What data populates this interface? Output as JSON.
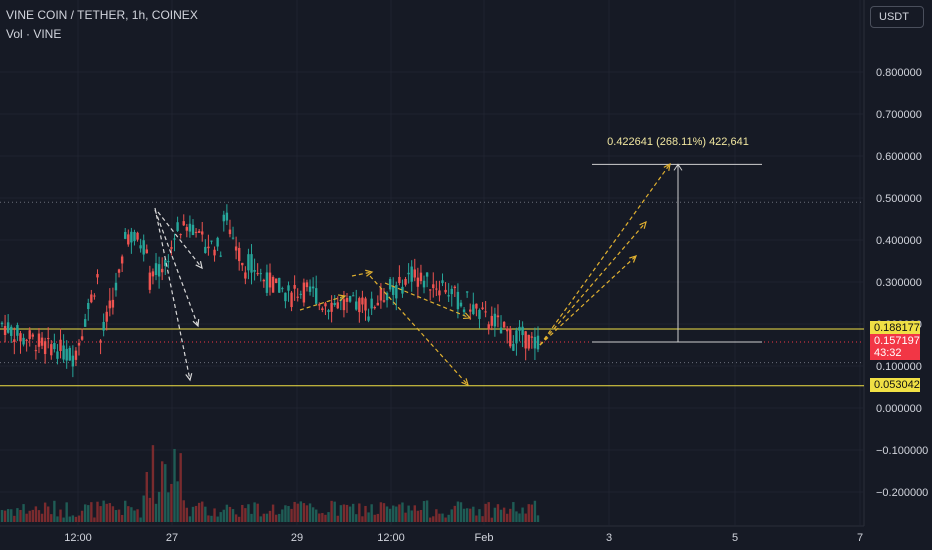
{
  "header": {
    "title": "VINE COIN / TETHER, 1h, COINEX",
    "volume_label": "Vol · VINE"
  },
  "currency_button": "USDT",
  "price_tags": {
    "line_upper": "0.188177",
    "current_price": "0.157197",
    "countdown": "43:32",
    "line_lower": "0.053042"
  },
  "measure_label": "0.422641 (268.11%) 422,641",
  "colors": {
    "background": "#161a25",
    "grid": "#1f2330",
    "up": "#26a69a",
    "down": "#ef5350",
    "yellow_line": "#f0e045",
    "current_tag": "#f23645",
    "arrow_white": "#d8d8d8",
    "arrow_yellow": "#e0b030"
  },
  "chart_data": {
    "type": "candlestick",
    "title": "VINE COIN / TETHER, 1h, COINEX",
    "y_ticks": [
      "0.800000",
      "0.700000",
      "0.600000",
      "0.500000",
      "0.400000",
      "0.300000",
      "0.200000",
      "0.100000",
      "0.000000",
      "−0.100000",
      "−0.200000"
    ],
    "y_tick_values": [
      0.8,
      0.7,
      0.6,
      0.5,
      0.4,
      0.3,
      0.2,
      0.1,
      0.0,
      -0.1,
      -0.2
    ],
    "x_ticks": [
      "12:00",
      "27",
      "29",
      "12:00",
      "Feb",
      "3",
      "5",
      "7"
    ],
    "ylim": [
      -0.25,
      0.85
    ],
    "horizontal_levels": [
      0.188177,
      0.053042
    ],
    "current_price": 0.157197,
    "dotted_levels": [
      0.49,
      0.108
    ],
    "measure": {
      "from": 0.157,
      "to": 0.58,
      "change": 0.422641,
      "percent": "268.11%"
    },
    "price_path": [
      [
        0.2,
        0.19
      ],
      [
        0.17,
        0.16
      ],
      [
        0.15,
        0.14
      ],
      [
        0.13,
        0.12
      ],
      [
        0.15,
        0.33
      ],
      [
        0.42,
        0.35
      ],
      [
        0.3,
        0.38
      ],
      [
        0.42,
        0.37
      ],
      [
        0.4,
        0.44
      ],
      [
        0.48,
        0.38
      ],
      [
        0.36,
        0.33
      ],
      [
        0.3,
        0.29
      ],
      [
        0.28,
        0.26
      ],
      [
        0.25,
        0.27
      ],
      [
        0.24,
        0.25
      ],
      [
        0.23,
        0.25
      ],
      [
        0.27,
        0.29
      ],
      [
        0.31,
        0.33
      ],
      [
        0.3,
        0.29
      ],
      [
        0.26,
        0.24
      ],
      [
        0.22,
        0.2
      ],
      [
        0.18,
        0.16
      ],
      [
        0.16,
        0.15
      ]
    ],
    "volume_note": "volume histogram along bottom"
  }
}
